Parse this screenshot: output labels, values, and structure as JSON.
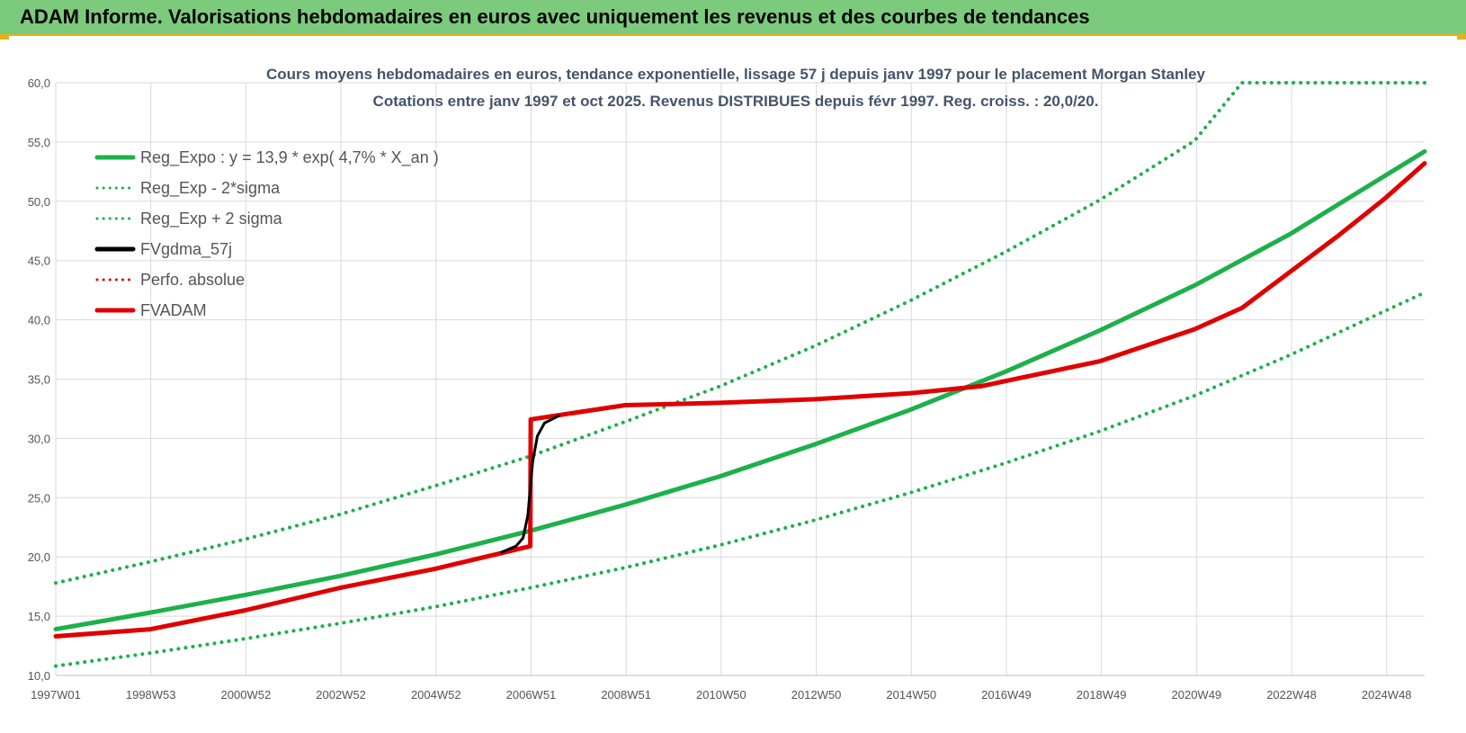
{
  "banner": {
    "title": "ADAM Informe. Valorisations hebdomadaires en euros avec uniquement les revenus et des courbes de tendances"
  },
  "chart_data": {
    "type": "line",
    "title_line1": "Cours moyens hebdomadaires en euros, tendance exponentielle, lissage 57 j depuis janv 1997 pour le placement Morgan Stanley",
    "title_line2": "Cotations entre janv 1997 et oct 2025. Revenus DISTRIBUES depuis févr 1997. Reg. croiss. : 20,0/20.",
    "x_tick_labels": [
      "1997W01",
      "1998W53",
      "2000W52",
      "2002W52",
      "2004W52",
      "2006W51",
      "2008W51",
      "2010W50",
      "2012W50",
      "2014W50",
      "2016W49",
      "2018W49",
      "2020W49",
      "2022W48",
      "2024W48"
    ],
    "x_range": [
      1997.0,
      2025.85
    ],
    "y_tick_labels": [
      "10,0",
      "15,0",
      "20,0",
      "25,0",
      "30,0",
      "35,0",
      "40,0",
      "45,0",
      "50,0",
      "55,0",
      "60,0"
    ],
    "ylim": [
      10,
      60
    ],
    "grid": true,
    "legend_position": "top-left",
    "colors": {
      "green": "#1db04b",
      "black": "#000000",
      "red": "#e00000"
    },
    "series": [
      {
        "name": "Reg_Expo : y = 13,9 * exp( 4,7% *  X_an )",
        "style": "solid",
        "color": "#1db04b",
        "x": [
          1997.0,
          1999.0,
          2001.0,
          2003.0,
          2005.0,
          2007.0,
          2009.0,
          2011.0,
          2013.0,
          2015.0,
          2017.0,
          2019.0,
          2021.0,
          2023.0,
          2025.85
        ],
        "y": [
          13.9,
          15.3,
          16.8,
          18.4,
          20.2,
          22.2,
          24.4,
          26.8,
          29.5,
          32.4,
          35.6,
          39.1,
          42.9,
          47.2,
          54.2
        ]
      },
      {
        "name": "Reg_Exp - 2*sigma",
        "style": "dotted",
        "color": "#1db04b",
        "x": [
          1997.0,
          1999.0,
          2001.0,
          2003.0,
          2005.0,
          2007.0,
          2009.0,
          2011.0,
          2013.0,
          2015.0,
          2017.0,
          2019.0,
          2021.0,
          2023.0,
          2025.85
        ],
        "y": [
          10.8,
          11.9,
          13.1,
          14.4,
          15.8,
          17.4,
          19.1,
          21.0,
          23.1,
          25.4,
          27.9,
          30.6,
          33.6,
          37.0,
          42.3
        ]
      },
      {
        "name": "Reg_Exp + 2 sigma",
        "style": "dotted",
        "color": "#1db04b",
        "x": [
          1997.0,
          1999.0,
          2001.0,
          2003.0,
          2005.0,
          2007.0,
          2009.0,
          2011.0,
          2013.0,
          2015.0,
          2017.0,
          2019.0,
          2021.0,
          2022.0,
          2025.85
        ],
        "y": [
          17.8,
          19.6,
          21.5,
          23.6,
          26.0,
          28.5,
          31.4,
          34.4,
          37.8,
          41.6,
          45.7,
          50.1,
          55.1,
          60.0,
          60.0
        ]
      },
      {
        "name": "FVgdma_57j",
        "style": "solid",
        "color": "#000000",
        "x": [
          2006.4,
          2006.7,
          2006.85,
          2006.95,
          2007.05,
          2007.15,
          2007.3,
          2007.6
        ],
        "y": [
          20.4,
          20.9,
          21.6,
          23.5,
          28.0,
          30.2,
          31.3,
          31.9
        ]
      },
      {
        "name": "Perfo. absolue",
        "style": "dotted",
        "color": "#e00000",
        "x": [],
        "y": []
      },
      {
        "name": "FVADAM",
        "style": "solid",
        "color": "#e00000",
        "x": [
          1997.0,
          1999.0,
          2001.0,
          2003.0,
          2005.0,
          2007.0,
          2007.01,
          2009.0,
          2011.0,
          2013.0,
          2015.0,
          2016.5,
          2019.0,
          2021.0,
          2022.0,
          2023.0,
          2024.0,
          2025.0,
          2025.85
        ],
        "y": [
          13.3,
          13.9,
          15.5,
          17.4,
          19.0,
          20.9,
          31.6,
          32.8,
          33.0,
          33.3,
          33.8,
          34.4,
          36.5,
          39.2,
          41.0,
          44.0,
          47.0,
          50.2,
          53.2
        ]
      }
    ]
  }
}
